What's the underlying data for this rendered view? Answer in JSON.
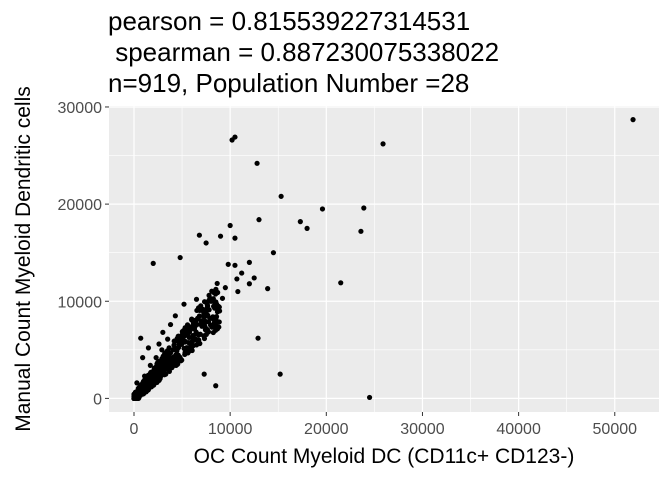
{
  "chart_data": {
    "type": "scatter",
    "title_lines": [
      "pearson = 0.815539227314531",
      " spearman = 0.887230075338022",
      "n=919, Population Number =28"
    ],
    "xlabel": "OC Count Myeloid DC (CD11c+ CD123-)",
    "ylabel": "Manual Count Myeloid Dendritic cells",
    "xlim": [
      -2600,
      54600
    ],
    "ylim": [
      -1400,
      30100
    ],
    "x_ticks": [
      0,
      10000,
      20000,
      30000,
      40000,
      50000
    ],
    "x_tick_labels": [
      "0",
      "10000",
      "20000",
      "30000",
      "40000",
      "50000"
    ],
    "y_ticks": [
      0,
      10000,
      20000,
      30000
    ],
    "y_tick_labels": [
      "0",
      "10000",
      "20000",
      "30000"
    ],
    "grid": true,
    "colors": {
      "panel": "#ebebeb",
      "grid": "#ffffff",
      "points": "#000000"
    },
    "points": [
      [
        51900,
        28700
      ],
      [
        25900,
        26200
      ],
      [
        10500,
        26900
      ],
      [
        10200,
        26600
      ],
      [
        12800,
        24200
      ],
      [
        15300,
        20800
      ],
      [
        19600,
        19500
      ],
      [
        23900,
        19600
      ],
      [
        17300,
        18200
      ],
      [
        18000,
        17500
      ],
      [
        23600,
        17200
      ],
      [
        13000,
        18400
      ],
      [
        10000,
        17800
      ],
      [
        6800,
        16800
      ],
      [
        9000,
        16700
      ],
      [
        10500,
        16500
      ],
      [
        14500,
        15000
      ],
      [
        7500,
        16000
      ],
      [
        4800,
        14500
      ],
      [
        2000,
        13900
      ],
      [
        12000,
        14000
      ],
      [
        10500,
        13700
      ],
      [
        9800,
        13800
      ],
      [
        21500,
        11900
      ],
      [
        13900,
        11300
      ],
      [
        12500,
        12400
      ],
      [
        12000,
        11800
      ],
      [
        11200,
        12900
      ],
      [
        10700,
        12300
      ],
      [
        9500,
        11400
      ],
      [
        8700,
        10900
      ],
      [
        10800,
        11000
      ],
      [
        9200,
        10300
      ],
      [
        7800,
        10100
      ],
      [
        8900,
        9000
      ],
      [
        6500,
        10200
      ],
      [
        7500,
        8800
      ],
      [
        5200,
        9700
      ],
      [
        4300,
        8500
      ],
      [
        3800,
        7600
      ],
      [
        3000,
        6800
      ],
      [
        700,
        6200
      ],
      [
        12900,
        6200
      ],
      [
        15200,
        2500
      ],
      [
        7300,
        2500
      ],
      [
        8500,
        1300
      ],
      [
        24500,
        100
      ],
      [
        3200,
        4600
      ],
      [
        3600,
        3000
      ],
      [
        4300,
        4100
      ],
      [
        5000,
        5800
      ],
      [
        5800,
        7100
      ],
      [
        6300,
        7700
      ],
      [
        6900,
        6600
      ],
      [
        8200,
        8400
      ],
      [
        2600,
        5600
      ],
      [
        2300,
        4200
      ],
      [
        1700,
        3400
      ],
      [
        1100,
        2300
      ],
      [
        500,
        900
      ],
      [
        200,
        300
      ],
      [
        0,
        0
      ],
      [
        300,
        1600
      ],
      [
        900,
        4200
      ],
      [
        1500,
        5200
      ],
      [
        1900,
        2600
      ],
      [
        2700,
        3400
      ],
      [
        3100,
        3900
      ],
      [
        4600,
        6400
      ],
      [
        5400,
        6900
      ],
      [
        6000,
        5500
      ],
      [
        4100,
        5000
      ],
      [
        3500,
        6100
      ],
      [
        2900,
        5000
      ],
      [
        2100,
        3000
      ],
      [
        1300,
        1300
      ],
      [
        800,
        700
      ],
      [
        1600,
        1900
      ],
      [
        2500,
        2200
      ],
      [
        3800,
        4700
      ]
    ]
  }
}
